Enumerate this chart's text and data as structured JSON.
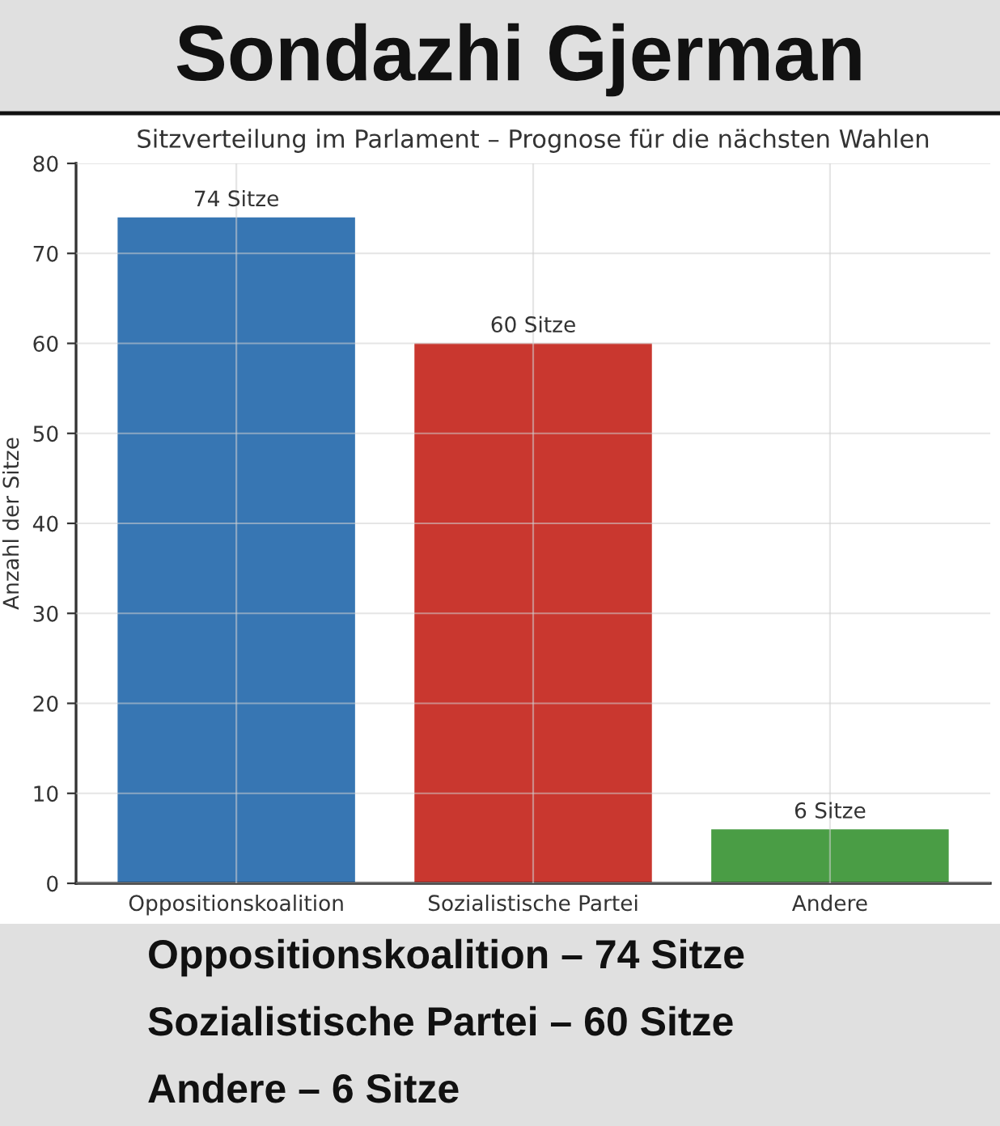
{
  "chart_data": {
    "type": "bar",
    "title": "Sondazhi Gjerman",
    "subtitle": "Sitzverteilung im Parlament – Prognose für die nächsten Wahlen",
    "ylabel": "Anzahl der Sitze",
    "categories": [
      "Oppositionskoalition",
      "Sozialistische Partei",
      "Andere"
    ],
    "values": [
      74,
      60,
      6
    ],
    "colors": [
      "#3776b3",
      "#c9372f",
      "#4a9d45"
    ],
    "value_labels": [
      "74 Sitze",
      "60 Sitze",
      "6 Sitze"
    ],
    "ylim": [
      0,
      80
    ],
    "yticks": [
      0,
      10,
      20,
      30,
      40,
      50,
      60,
      70,
      80
    ],
    "grid": true,
    "annotations": [
      "Oppositionskoalition – 74 Sitze",
      "Sozialistische Partei – 60 Sitze",
      "Andere – 6 Sitze"
    ]
  }
}
